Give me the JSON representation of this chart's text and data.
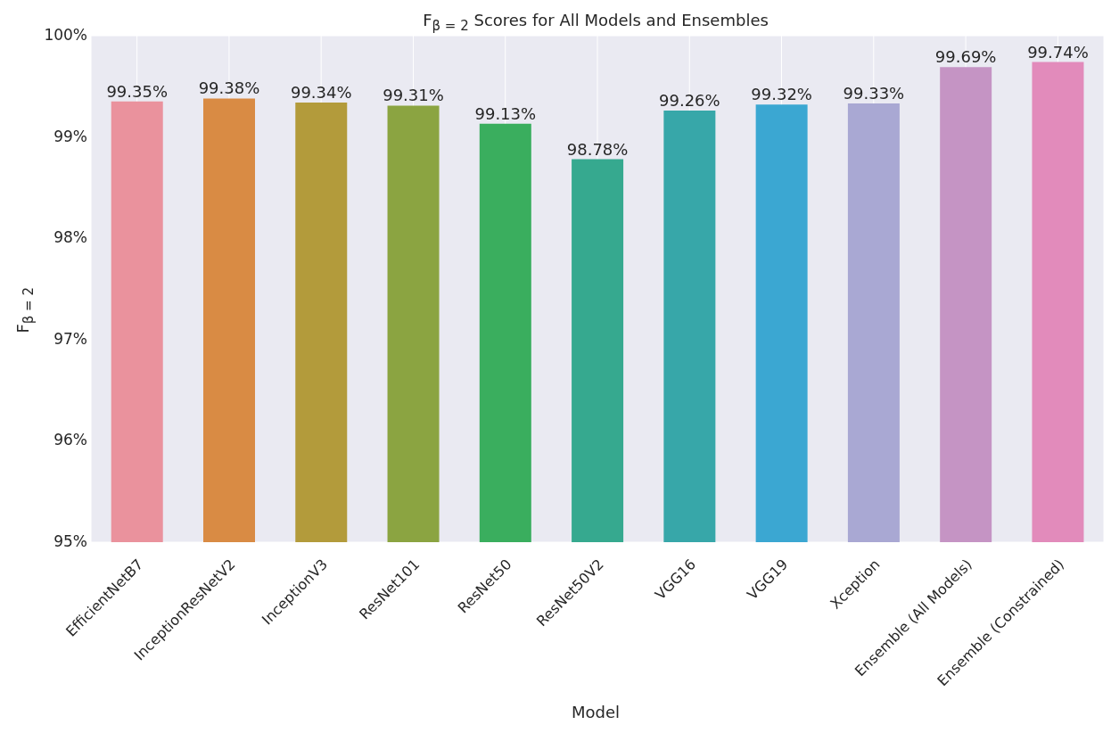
{
  "chart_data": {
    "type": "bar",
    "title": "F$_{β = 2}$ Scores for All Models and Ensembles",
    "xlabel": "Model",
    "ylabel": "F$_{β = 2}$",
    "categories": [
      "EfficientNetB7",
      "InceptionResNetV2",
      "InceptionV3",
      "ResNet101",
      "ResNet50",
      "ResNet50V2",
      "VGG16",
      "VGG19",
      "Xception",
      "Ensemble (All Models)",
      "Ensemble (Constrained)"
    ],
    "values": [
      99.35,
      99.38,
      99.34,
      99.31,
      99.13,
      98.78,
      99.26,
      99.32,
      99.33,
      99.69,
      99.74
    ],
    "value_labels": [
      "99.35%",
      "99.38%",
      "99.34%",
      "99.31%",
      "99.13%",
      "98.78%",
      "99.26%",
      "99.32%",
      "99.33%",
      "99.69%",
      "99.74%"
    ],
    "colors": [
      "#ea929d",
      "#d98b44",
      "#b39b3b",
      "#8ba441",
      "#3aae5e",
      "#36a98f",
      "#37a7a9",
      "#3ba7d2",
      "#a9a8d3",
      "#c594c4",
      "#e28bbb"
    ],
    "ylim": [
      95,
      100
    ],
    "yticks": [
      {
        "value": 95,
        "label": "95%"
      },
      {
        "value": 96,
        "label": "96%"
      },
      {
        "value": 97,
        "label": "97%"
      },
      {
        "value": 98,
        "label": "98%"
      },
      {
        "value": 99,
        "label": "99%"
      },
      {
        "value": 100,
        "label": "100%"
      }
    ],
    "grid": true
  }
}
